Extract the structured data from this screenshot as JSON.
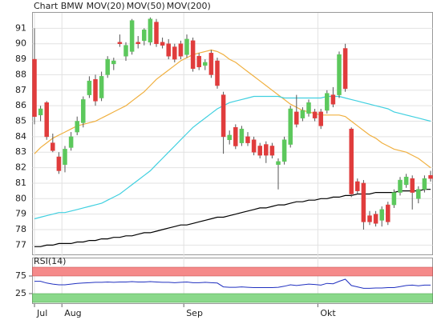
{
  "chart_data": [
    {
      "type": "candlestick",
      "title": "Chart BMW",
      "title_color": "#e03c3c",
      "categories": [
        "Jul",
        null,
        null,
        null,
        null,
        "Aug",
        null,
        null,
        null,
        null,
        null,
        null,
        null,
        null,
        null,
        null,
        null,
        null,
        null,
        null,
        null,
        null,
        null,
        null,
        null,
        "Sep",
        null,
        null,
        null,
        null,
        null,
        null,
        null,
        null,
        null,
        null,
        null,
        null,
        null,
        null,
        null,
        null,
        null,
        null,
        null,
        null,
        null,
        "Okt",
        null,
        null,
        null,
        null,
        null,
        null,
        null,
        null,
        null,
        null,
        null,
        null,
        null,
        null,
        null,
        null,
        null,
        null
      ],
      "open": [
        89.0,
        85.4,
        86.2,
        83.6,
        82.7,
        82.2,
        83.3,
        84.3,
        84.9,
        86.7,
        87.7,
        86.5,
        88.0,
        88.7,
        90.1,
        89.2,
        89.5,
        90.1,
        90.2,
        90.1,
        91.4,
        90.1,
        90.0,
        89.8,
        90.0,
        89.3,
        90.2,
        89.2,
        88.6,
        89.4,
        88.9,
        86.7,
        83.8,
        84.6,
        83.6,
        84.0,
        83.8,
        83.4,
        83.5,
        83.4,
        82.2,
        82.4,
        83.5,
        85.6,
        85.2,
        85.5,
        85.6,
        85.6,
        85.7,
        86.7,
        86.7,
        89.7,
        84.5,
        81.1,
        81.0,
        78.9,
        79.0,
        78.6,
        79.6,
        79.6,
        80.4,
        80.9,
        81.3,
        80.0,
        80.6,
        81.5
      ],
      "high": [
        91.0,
        86.0,
        86.3,
        84.2,
        83.0,
        83.4,
        84.3,
        85.3,
        86.6,
        87.9,
        88.0,
        88.2,
        89.2,
        89.1,
        90.6,
        90.1,
        91.6,
        90.5,
        91.0,
        91.7,
        91.6,
        90.4,
        90.3,
        90.0,
        90.2,
        90.6,
        90.4,
        89.4,
        89.0,
        89.6,
        89.1,
        86.9,
        84.4,
        84.8,
        84.7,
        84.3,
        84.0,
        83.6,
        83.7,
        83.6,
        82.6,
        84.0,
        86.0,
        86.7,
        85.9,
        86.4,
        85.8,
        85.8,
        87.0,
        87.2,
        89.5,
        90.0,
        84.6,
        81.3,
        81.2,
        79.2,
        79.2,
        79.5,
        79.8,
        80.6,
        81.4,
        81.6,
        81.5,
        80.8,
        81.5,
        81.8
      ],
      "low": [
        84.8,
        85.0,
        83.8,
        83.0,
        81.6,
        81.7,
        83.1,
        84.1,
        84.6,
        86.5,
        86.0,
        86.3,
        87.8,
        88.3,
        89.8,
        88.9,
        89.3,
        89.7,
        89.9,
        89.9,
        89.8,
        89.7,
        89.0,
        88.8,
        89.0,
        89.1,
        88.2,
        88.3,
        88.3,
        87.8,
        87.1,
        82.9,
        83.5,
        83.2,
        83.4,
        83.4,
        82.8,
        82.6,
        82.3,
        82.6,
        80.6,
        82.2,
        83.3,
        84.6,
        85.0,
        85.3,
        85.0,
        84.5,
        85.5,
        85.9,
        86.5,
        86.9,
        80.1,
        80.3,
        78.0,
        78.3,
        78.2,
        78.2,
        78.3,
        79.4,
        80.2,
        80.7,
        79.3,
        79.7,
        80.4,
        81.1
      ],
      "close": [
        85.3,
        85.8,
        84.0,
        83.1,
        81.8,
        83.2,
        84.0,
        85.0,
        86.4,
        87.6,
        86.3,
        87.9,
        89.0,
        88.9,
        90.0,
        89.9,
        91.5,
        90.0,
        90.9,
        91.6,
        90.0,
        89.9,
        89.2,
        89.0,
        89.2,
        90.3,
        88.4,
        88.5,
        88.8,
        88.0,
        87.3,
        84.0,
        84.1,
        83.4,
        84.5,
        83.6,
        83.0,
        82.8,
        82.8,
        82.8,
        82.4,
        83.8,
        85.8,
        84.8,
        85.7,
        86.2,
        85.2,
        84.7,
        86.8,
        86.1,
        89.3,
        87.1,
        80.3,
        80.5,
        78.5,
        78.5,
        78.4,
        79.3,
        78.5,
        80.4,
        81.2,
        81.4,
        80.4,
        80.6,
        81.3,
        81.3
      ],
      "up_color": "#5cc85c",
      "down_color": "#e03c3c",
      "series": [
        {
          "name": "MOV(20)",
          "color": "#f0b040",
          "values": [
            82.9,
            83.3,
            83.6,
            83.9,
            84.1,
            84.3,
            84.5,
            84.7,
            84.8,
            84.9,
            85.0,
            85.2,
            85.4,
            85.6,
            85.8,
            86.0,
            86.3,
            86.6,
            86.9,
            87.3,
            87.7,
            88.0,
            88.3,
            88.6,
            88.9,
            89.1,
            89.3,
            89.4,
            89.5,
            89.6,
            89.5,
            89.3,
            89.0,
            88.8,
            88.5,
            88.2,
            87.9,
            87.6,
            87.3,
            87.0,
            86.7,
            86.4,
            86.1,
            85.9,
            85.7,
            85.6,
            85.5,
            85.4,
            85.4,
            85.4,
            85.4,
            85.3,
            85.0,
            84.7,
            84.4,
            84.1,
            83.9,
            83.6,
            83.4,
            83.2,
            83.1,
            83.0,
            82.8,
            82.6,
            82.3,
            82.0
          ]
        },
        {
          "name": "MOV(50)",
          "color": "#40d0e0",
          "values": [
            78.7,
            78.8,
            78.9,
            79.0,
            79.1,
            79.1,
            79.2,
            79.3,
            79.4,
            79.5,
            79.6,
            79.7,
            79.9,
            80.1,
            80.3,
            80.6,
            80.9,
            81.2,
            81.5,
            81.8,
            82.2,
            82.6,
            83.0,
            83.4,
            83.8,
            84.2,
            84.6,
            84.9,
            85.2,
            85.5,
            85.8,
            86.0,
            86.2,
            86.3,
            86.4,
            86.5,
            86.6,
            86.6,
            86.6,
            86.6,
            86.6,
            86.5,
            86.5,
            86.5,
            86.5,
            86.5,
            86.5,
            86.5,
            86.6,
            86.6,
            86.6,
            86.5,
            86.4,
            86.3,
            86.2,
            86.1,
            86.0,
            85.9,
            85.8,
            85.6,
            85.5,
            85.4,
            85.3,
            85.2,
            85.1,
            85.0
          ]
        },
        {
          "name": "MOV(200)",
          "color": "#000000",
          "values": [
            76.9,
            76.9,
            77.0,
            77.0,
            77.1,
            77.1,
            77.1,
            77.2,
            77.2,
            77.3,
            77.3,
            77.4,
            77.4,
            77.5,
            77.5,
            77.6,
            77.6,
            77.7,
            77.8,
            77.8,
            77.9,
            78.0,
            78.1,
            78.2,
            78.3,
            78.3,
            78.4,
            78.5,
            78.6,
            78.7,
            78.8,
            78.8,
            78.9,
            79.0,
            79.1,
            79.2,
            79.3,
            79.4,
            79.4,
            79.5,
            79.6,
            79.6,
            79.7,
            79.8,
            79.8,
            79.9,
            79.9,
            80.0,
            80.0,
            80.1,
            80.1,
            80.2,
            80.2,
            80.3,
            80.3,
            80.3,
            80.4,
            80.4,
            80.4,
            80.4,
            80.5,
            80.5,
            80.5,
            80.5,
            80.6,
            80.6
          ]
        }
      ],
      "ylim": [
        76.4,
        92.0
      ],
      "yticks": [
        77,
        78,
        79,
        80,
        81,
        82,
        83,
        84,
        85,
        86,
        87,
        88,
        89,
        90,
        91
      ],
      "grid": true
    },
    {
      "type": "line",
      "title": "RSI(14)",
      "series": [
        {
          "color": "#2030c0",
          "values": [
            60,
            60,
            55,
            52,
            50,
            50,
            52,
            54,
            55,
            56,
            57,
            57,
            58,
            57,
            58,
            58,
            59,
            58,
            58,
            59,
            58,
            57,
            57,
            56,
            57,
            58,
            56,
            56,
            57,
            56,
            55,
            44,
            43,
            43,
            44,
            43,
            42,
            42,
            42,
            42,
            43,
            46,
            50,
            48,
            50,
            52,
            51,
            49,
            54,
            53,
            60,
            66,
            48,
            44,
            40,
            40,
            41,
            41,
            42,
            42,
            45,
            48,
            49,
            47,
            49,
            49
          ]
        }
      ],
      "ylim": [
        0,
        100
      ],
      "yticks": [
        25,
        75
      ],
      "overbought_color": "#f58a8a",
      "oversold_color": "#8ad88a"
    }
  ]
}
